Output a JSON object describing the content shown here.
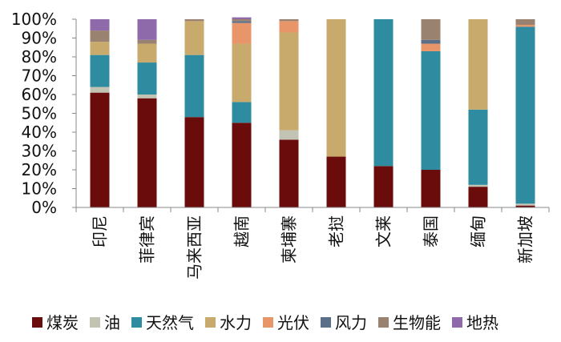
{
  "chart_data": {
    "type": "bar",
    "stacked": true,
    "title": "",
    "xlabel": "",
    "ylabel": "",
    "ylim": [
      0,
      100
    ],
    "yticks": [
      "0%",
      "10%",
      "20%",
      "30%",
      "40%",
      "50%",
      "60%",
      "70%",
      "80%",
      "90%",
      "100%"
    ],
    "legend_position": "bottom",
    "grid": false,
    "categories": [
      "印尼",
      "菲律宾",
      "马来西亚",
      "越南",
      "柬埔寨",
      "老挝",
      "文莱",
      "泰国",
      "缅甸",
      "新加坡"
    ],
    "series": [
      {
        "name": "煤炭",
        "color": "#6B0C0C",
        "values": [
          61,
          58,
          48,
          45,
          36,
          27,
          22,
          20,
          11,
          1
        ]
      },
      {
        "name": "油",
        "color": "#C3C3B3",
        "values": [
          3,
          2,
          0,
          0,
          5,
          0,
          0,
          0,
          1,
          1
        ]
      },
      {
        "name": "天然气",
        "color": "#2E8BA0",
        "values": [
          17,
          17,
          33,
          11,
          0,
          0,
          78,
          63,
          40,
          94
        ]
      },
      {
        "name": "水力",
        "color": "#C8AA6C",
        "values": [
          7,
          10,
          18,
          31,
          52,
          73,
          0,
          0,
          48,
          0
        ]
      },
      {
        "name": "光伏",
        "color": "#E8956A",
        "values": [
          0,
          0,
          0,
          11,
          6,
          0,
          0,
          4,
          0,
          1
        ]
      },
      {
        "name": "风力",
        "color": "#5B6E88",
        "values": [
          0,
          0,
          0,
          1,
          0,
          0,
          0,
          2,
          0,
          0
        ]
      },
      {
        "name": "生物能",
        "color": "#9A8270",
        "values": [
          6,
          2,
          1,
          1,
          1,
          0,
          0,
          11,
          0,
          3
        ]
      },
      {
        "name": "地热",
        "color": "#8F6AAA",
        "values": [
          6,
          11,
          0,
          1,
          0,
          0,
          0,
          0,
          0,
          0
        ]
      }
    ]
  }
}
